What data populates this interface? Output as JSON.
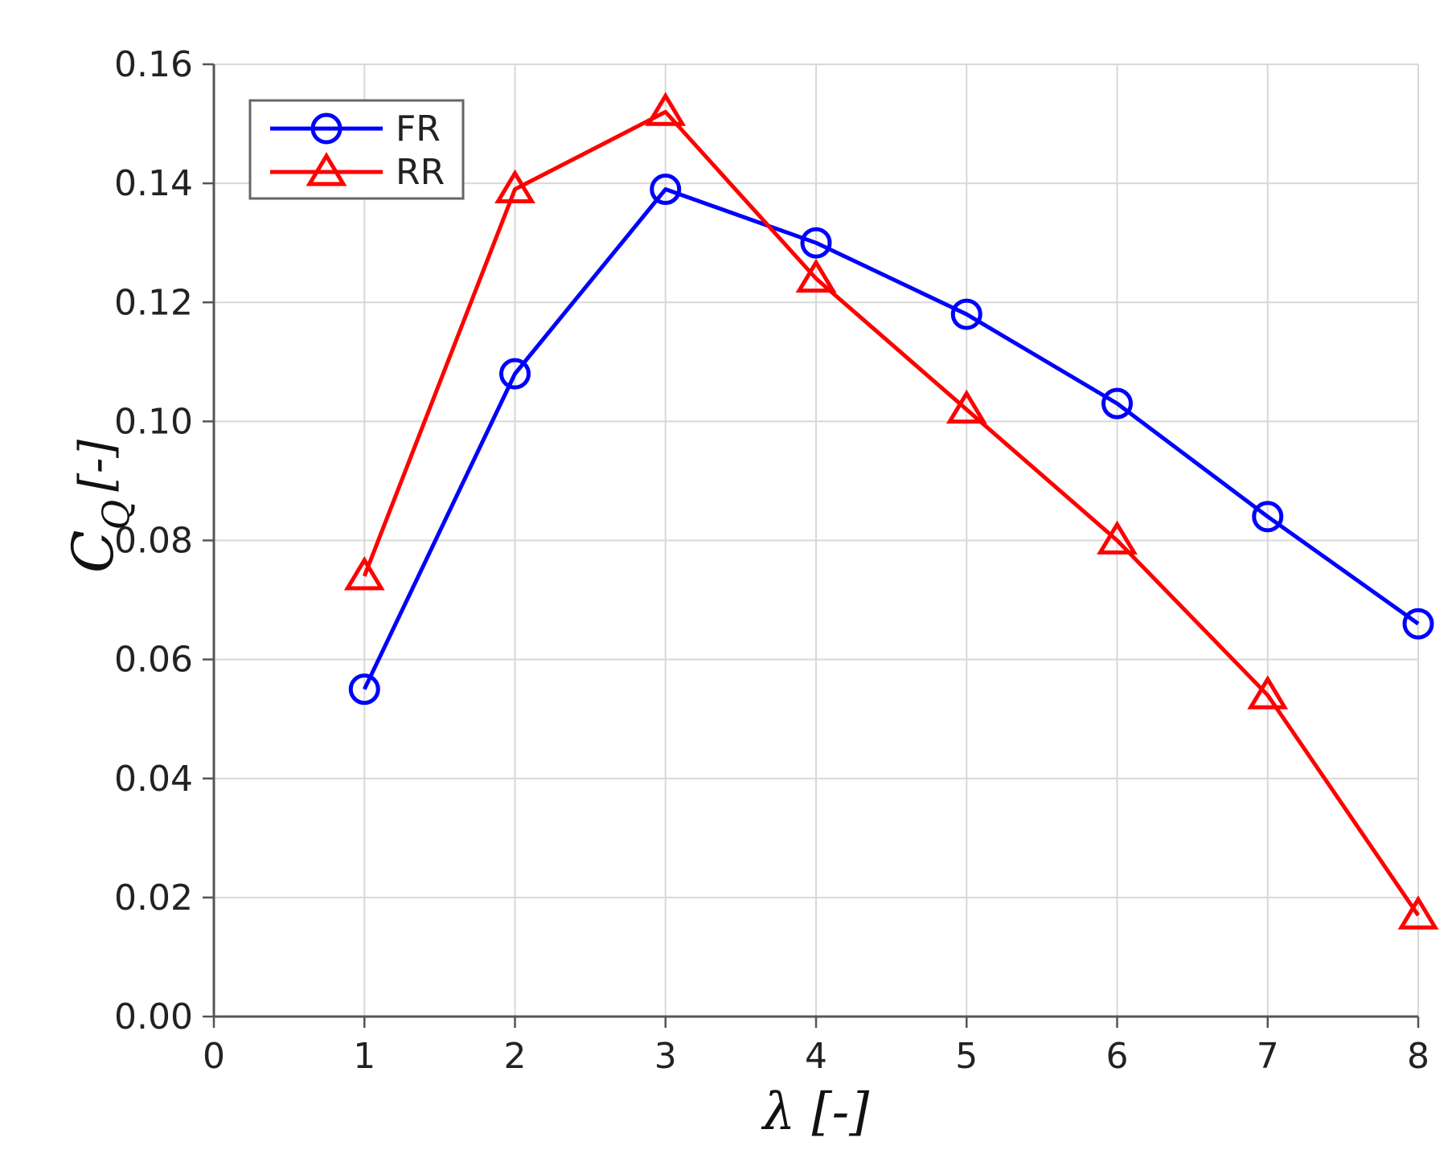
{
  "chart_data": {
    "type": "line",
    "x": [
      1,
      2,
      3,
      4,
      5,
      6,
      7,
      8
    ],
    "series": [
      {
        "name": "FR",
        "values": [
          0.055,
          0.108,
          0.139,
          0.13,
          0.118,
          0.103,
          0.084,
          0.066
        ],
        "color": "#0000ff",
        "marker": "circle"
      },
      {
        "name": "RR",
        "values": [
          0.074,
          0.139,
          0.152,
          0.124,
          0.102,
          0.08,
          0.054,
          0.017
        ],
        "color": "#ff0000",
        "marker": "triangle"
      }
    ],
    "xlim": [
      0,
      8
    ],
    "ylim": [
      0,
      0.16
    ],
    "x_ticks": [
      "0",
      "1",
      "2",
      "3",
      "4",
      "5",
      "6",
      "7",
      "8"
    ],
    "y_ticks": [
      "0.00",
      "0.02",
      "0.04",
      "0.06",
      "0.08",
      "0.10",
      "0.12",
      "0.14",
      "0.16"
    ],
    "xlabel": "λ [-]",
    "ylabel_main": "C",
    "ylabel_sub": "Q",
    "ylabel_unit": "[-]",
    "grid": true,
    "legend_position": "top-left"
  }
}
